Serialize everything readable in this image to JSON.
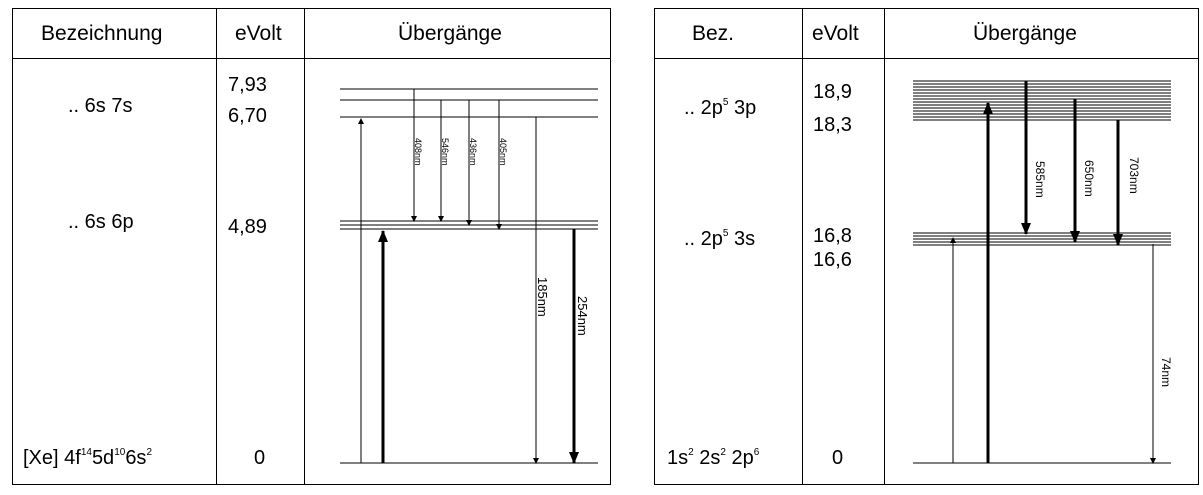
{
  "left": {
    "headers": {
      "name": "Bezeichnung",
      "ev": "eVolt",
      "transitions": "Übergänge"
    },
    "levels": [
      {
        "name_main": ".. 6s 7s"
      },
      {
        "name_main": ".. 6s 6p"
      }
    ],
    "ground": {
      "p1": "[Xe] 4f",
      "s1": "14",
      "p2": "5d",
      "s2": "10",
      "p3": "6s",
      "s3": "2"
    },
    "energies": [
      "7,93",
      "6,70",
      "4,89",
      "0"
    ],
    "wavelengths": [
      "408nm",
      "546nm",
      "436nm",
      "405nm",
      "185nm",
      "254nm"
    ]
  },
  "right": {
    "headers": {
      "name": "Bez.",
      "ev": "eVolt",
      "transitions": "Übergänge"
    },
    "level_upper": {
      "p1": ".. 2p",
      "s1": "5",
      "p2": " 3p"
    },
    "level_lower": {
      "p1": ".. 2p",
      "s1": "5",
      "p2": " 3s"
    },
    "ground": {
      "p1": "1s",
      "s1": "2",
      "p2": " 2s",
      "s2": "2",
      "p3": " 2p",
      "s3": "6"
    },
    "energies": [
      "18,9",
      "18,3",
      "16,8",
      "16,6",
      "0"
    ],
    "wavelengths": [
      "585nm",
      "650nm",
      "703nm",
      "74nm"
    ]
  }
}
